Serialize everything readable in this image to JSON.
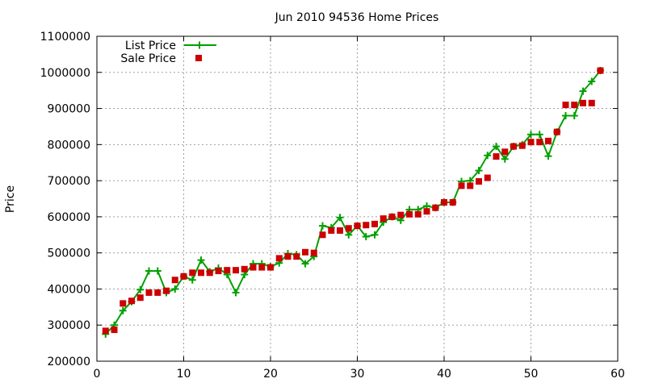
{
  "chart_data": {
    "type": "scatter",
    "title": "Jun 2010 94536 Home Prices",
    "xlabel": "",
    "ylabel": "Price",
    "xlim": [
      0,
      60
    ],
    "ylim": [
      200000,
      1100000
    ],
    "x_ticks": [
      "0",
      "10",
      "20",
      "30",
      "40",
      "50",
      "60"
    ],
    "y_ticks": [
      "200000",
      "300000",
      "400000",
      "500000",
      "600000",
      "700000",
      "800000",
      "900000",
      "1000000",
      "1100000"
    ],
    "grid": true,
    "legend_position": "top-left",
    "series": [
      {
        "name": "List Price",
        "style": "line+cross",
        "color": "#00a000",
        "x": [
          1,
          2,
          3,
          4,
          5,
          6,
          7,
          8,
          9,
          10,
          11,
          12,
          13,
          14,
          15,
          16,
          17,
          18,
          19,
          20,
          21,
          22,
          23,
          24,
          25,
          26,
          27,
          28,
          29,
          30,
          31,
          32,
          33,
          34,
          35,
          36,
          37,
          38,
          39,
          40,
          41,
          42,
          43,
          44,
          45,
          46,
          47,
          48,
          49,
          50,
          51,
          52,
          53,
          54,
          55,
          56,
          57,
          58
        ],
        "y": [
          275000,
          300000,
          340000,
          365000,
          398000,
          450000,
          450000,
          390000,
          400000,
          435000,
          425000,
          480000,
          448000,
          458000,
          440000,
          390000,
          440000,
          470000,
          470000,
          462000,
          472000,
          498000,
          495000,
          470000,
          490000,
          575000,
          570000,
          598000,
          550000,
          575000,
          545000,
          550000,
          585000,
          600000,
          590000,
          620000,
          620000,
          630000,
          625000,
          640000,
          640000,
          698000,
          700000,
          728000,
          770000,
          795000,
          760000,
          795000,
          800000,
          828000,
          828000,
          768000,
          835000,
          880000,
          880000,
          948000,
          975000,
          1005000
        ]
      },
      {
        "name": "Sale Price",
        "style": "square",
        "color": "#cc0000",
        "x": [
          1,
          2,
          3,
          4,
          5,
          6,
          7,
          8,
          9,
          10,
          11,
          12,
          13,
          14,
          15,
          16,
          17,
          18,
          19,
          20,
          21,
          22,
          23,
          24,
          25,
          26,
          27,
          28,
          29,
          30,
          31,
          32,
          33,
          34,
          35,
          36,
          37,
          38,
          39,
          40,
          41,
          42,
          43,
          44,
          45,
          46,
          47,
          48,
          49,
          50,
          51,
          52,
          53,
          54,
          55,
          56,
          57,
          58
        ],
        "y": [
          284000,
          287000,
          360000,
          367000,
          376000,
          390000,
          390000,
          395000,
          425000,
          435000,
          445000,
          445000,
          445000,
          450000,
          452000,
          452000,
          455000,
          460000,
          460000,
          460000,
          485000,
          490000,
          490000,
          502000,
          500000,
          550000,
          562000,
          562000,
          568000,
          575000,
          577000,
          580000,
          595000,
          600000,
          605000,
          607000,
          607000,
          615000,
          625000,
          640000,
          640000,
          686000,
          686000,
          698000,
          708000,
          767000,
          780000,
          795000,
          797000,
          807000,
          807000,
          810000,
          835000,
          910000,
          910000,
          915000,
          915000,
          1005000
        ]
      }
    ]
  }
}
